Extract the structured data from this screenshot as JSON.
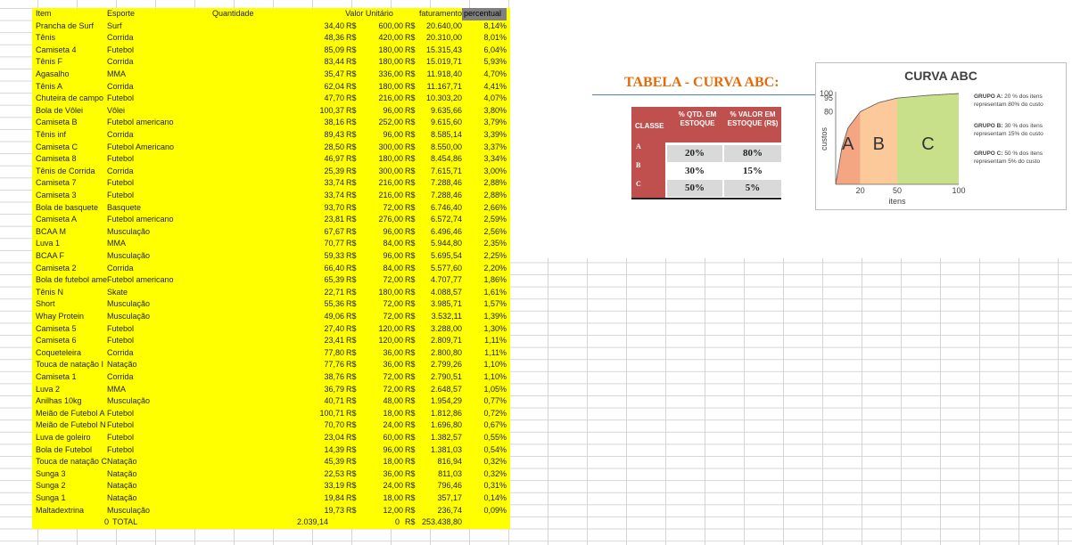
{
  "sheet": {
    "headers": {
      "item": "Item",
      "esporte": "Esporte",
      "quantidade": "Quantidade",
      "valor_unitario": "Valor Unitário",
      "faturamento": "faturamento",
      "percentual": "percentual"
    },
    "currency": "R$",
    "rows": [
      [
        "Prancha de Surf",
        "Surf",
        "34,40",
        "600,00",
        "20.640,00",
        "8,14%"
      ],
      [
        "Tênis",
        "Corrida",
        "48,36",
        "420,00",
        "20.310,00",
        "8,01%"
      ],
      [
        "Camiseta 4",
        "Futebol",
        "85,09",
        "180,00",
        "15.315,43",
        "6,04%"
      ],
      [
        "Tênis F",
        "Corrida",
        "83,44",
        "180,00",
        "15.019,71",
        "5,93%"
      ],
      [
        "Agasalho",
        "MMA",
        "35,47",
        "336,00",
        "11.918,40",
        "4,70%"
      ],
      [
        "Tênis A",
        "Corrida",
        "62,04",
        "180,00",
        "11.167,71",
        "4,41%"
      ],
      [
        "Chuteira de campo",
        "Futebol",
        "47,70",
        "216,00",
        "10.303,20",
        "4,07%"
      ],
      [
        "Bola de Vôlei",
        "Vôlei",
        "100,37",
        "96,00",
        "9.635,66",
        "3,80%"
      ],
      [
        "Camiseta B",
        "Futebol americano",
        "38,16",
        "252,00",
        "9.615,60",
        "3,79%"
      ],
      [
        "Tênis inf",
        "Corrida",
        "89,43",
        "96,00",
        "8.585,14",
        "3,39%"
      ],
      [
        "Camiseta C",
        "Futebol Americano",
        "28,50",
        "300,00",
        "8.550,00",
        "3,37%"
      ],
      [
        "Camiseta 8",
        "Futebol",
        "46,97",
        "180,00",
        "8.454,86",
        "3,34%"
      ],
      [
        "Tênis de Corrida",
        "Corrida",
        "25,39",
        "300,00",
        "7.615,71",
        "3,00%"
      ],
      [
        "Camiseta 7",
        "Futebol",
        "33,74",
        "216,00",
        "7.288,46",
        "2,88%"
      ],
      [
        "Camiseta 3",
        "Futebol",
        "33,74",
        "216,00",
        "7.288,46",
        "2,88%"
      ],
      [
        "Bola de basquete",
        "Basquete",
        "93,70",
        "72,00",
        "6.746,40",
        "2,66%"
      ],
      [
        "Camiseta A",
        "Futebol americano",
        "23,81",
        "276,00",
        "6.572,74",
        "2,59%"
      ],
      [
        "BCAA M",
        "Musculação",
        "67,67",
        "96,00",
        "6.496,46",
        "2,56%"
      ],
      [
        "Luva 1",
        "MMA",
        "70,77",
        "84,00",
        "5.944,80",
        "2,35%"
      ],
      [
        "BCAA F",
        "Musculação",
        "59,33",
        "96,00",
        "5.695,54",
        "2,25%"
      ],
      [
        "Camiseta 2",
        "Corrida",
        "66,40",
        "84,00",
        "5.577,60",
        "2,20%"
      ],
      [
        "Bola de futebol ame",
        "Futebol americano",
        "65,39",
        "72,00",
        "4.707,77",
        "1,86%"
      ],
      [
        "Tênis N",
        "Skate",
        "22,71",
        "180,00",
        "4.088,57",
        "1,61%"
      ],
      [
        "Short",
        "Musculação",
        "55,36",
        "72,00",
        "3.985,71",
        "1,57%"
      ],
      [
        "Whay Protein",
        "Musculação",
        "49,06",
        "72,00",
        "3.532,11",
        "1,39%"
      ],
      [
        "Camiseta 5",
        "Futebol",
        "27,40",
        "120,00",
        "3.288,00",
        "1,30%"
      ],
      [
        "Camiseta 6",
        "Futebol",
        "23,41",
        "120,00",
        "2.809,71",
        "1,11%"
      ],
      [
        "Coqueteleira",
        "Corrida",
        "77,80",
        "36,00",
        "2.800,80",
        "1,11%"
      ],
      [
        "Touca de natação I",
        "Natação",
        "77,76",
        "36,00",
        "2.799,26",
        "1,10%"
      ],
      [
        "Camiseta 1",
        "Corrida",
        "38,76",
        "72,00",
        "2.790,51",
        "1,10%"
      ],
      [
        "Luva 2",
        "MMA",
        "36,79",
        "72,00",
        "2.648,57",
        "1,05%"
      ],
      [
        "Anilhas 10kg",
        "Musculação",
        "40,71",
        "48,00",
        "1.954,29",
        "0,77%"
      ],
      [
        "Meião de Futebol A",
        "Futebol",
        "100,71",
        "18,00",
        "1.812,86",
        "0,72%"
      ],
      [
        "Meião de Futebol N",
        "Futebol",
        "70,70",
        "24,00",
        "1.696,80",
        "0,67%"
      ],
      [
        "Luva de goleiro",
        "Futebol",
        "23,04",
        "60,00",
        "1.382,57",
        "0,55%"
      ],
      [
        "Bola de Futebol",
        "Futebol",
        "14,39",
        "96,00",
        "1.381,03",
        "0,54%"
      ],
      [
        "Touca de natação C",
        "Natação",
        "45,39",
        "18,00",
        "816,94",
        "0,32%"
      ],
      [
        "Sunga 3",
        "Natação",
        "22,53",
        "36,00",
        "811,03",
        "0,32%"
      ],
      [
        "Sunga 2",
        "Natação",
        "33,19",
        "24,00",
        "796,46",
        "0,31%"
      ],
      [
        "Sunga 1",
        "Natação",
        "19,84",
        "18,00",
        "357,17",
        "0,14%"
      ],
      [
        "Maltadextrina",
        "Musculação",
        "19,73",
        "12,00",
        "236,74",
        "0,09%"
      ]
    ],
    "total": {
      "zero_left": "0",
      "label": "TOTAL",
      "quantidade": "2.039,14",
      "zero_right": "0",
      "currency": "R$",
      "faturamento": "253.438,80"
    }
  },
  "abc_table": {
    "title": "TABELA - CURVA ABC:",
    "col_class": "CLASSE",
    "col_qtd": "% QTD. EM ESTOQUE",
    "col_valor": "% VALOR EM ESTOQUE (R$)",
    "rows": [
      {
        "classe": "A",
        "qtd": "20%",
        "valor": "80%"
      },
      {
        "classe": "B",
        "qtd": "30%",
        "valor": "15%"
      },
      {
        "classe": "C",
        "qtd": "50%",
        "valor": "5%"
      }
    ]
  },
  "chart_data": {
    "type": "area",
    "title": "CURVA ABC",
    "xlabel": "itens",
    "ylabel": "custos",
    "x_ticks": [
      "20",
      "50",
      "100"
    ],
    "y_ticks": [
      "80",
      "95",
      "100"
    ],
    "xlim": [
      0,
      100
    ],
    "ylim": [
      0,
      100
    ],
    "curve": [
      [
        0,
        0
      ],
      [
        5,
        40
      ],
      [
        10,
        62
      ],
      [
        20,
        80
      ],
      [
        35,
        90
      ],
      [
        50,
        95
      ],
      [
        75,
        98
      ],
      [
        100,
        100
      ]
    ],
    "zones": [
      {
        "label": "A",
        "from": 0,
        "to": 20,
        "color": "#f4a582"
      },
      {
        "label": "B",
        "from": 20,
        "to": 50,
        "color": "#fcc99a"
      },
      {
        "label": "C",
        "from": 50,
        "to": 100,
        "color": "#c8e08a"
      }
    ],
    "legend": [
      {
        "group": "GRUPO A:",
        "text": "20 % dos itens representam 80% do custo"
      },
      {
        "group": "GRUPO B:",
        "text": "30 % dos itens representam 15% do custo"
      },
      {
        "group": "GRUPO C:",
        "text": "50 % dos itens representam 5% do custo"
      }
    ]
  }
}
